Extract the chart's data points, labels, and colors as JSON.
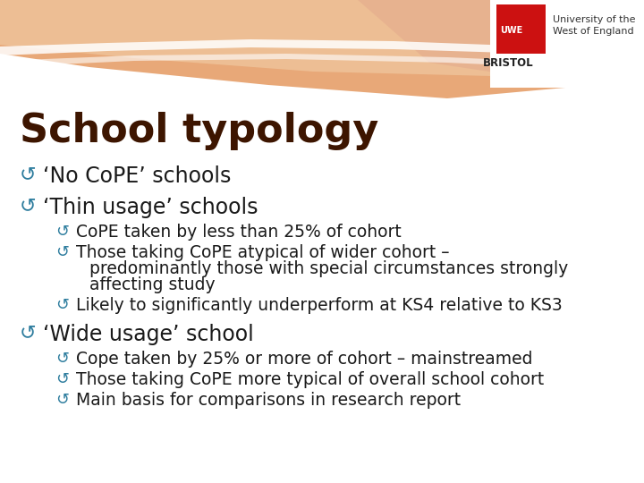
{
  "title": "School typology",
  "title_color": "#3d1500",
  "title_fontsize": 32,
  "bg_color": "#ffffff",
  "bullet_color": "#2e7d9e",
  "text_color": "#1a1a1a",
  "level1_fontsize": 17,
  "level2_fontsize": 13.5,
  "level1_items": [
    "‘No CoPE’ schools",
    "‘Thin usage’ schools"
  ],
  "level2_items_after_thin": [
    "CoPE taken by less than 25% of cohort",
    "Those taking CoPE atypical of wider cohort –\npredominantly those with special circumstances strongly\naffecting study",
    "Likely to significantly underperform at KS4 relative to KS3"
  ],
  "level1_wide": "‘Wide usage’ school",
  "level2_items_after_wide": [
    "Cope taken by 25% or more of cohort – mainstreamed",
    "Those taking CoPE more typical of overall school cohort",
    "Main basis for comparisons in research report"
  ],
  "bullet_l1": "↺",
  "bullet_l2": "↺",
  "uwe_logo_color": "#cc1111",
  "wave_colors": {
    "back_orange": "#e8a060",
    "mid_peach": "#e8c090",
    "front_tan": "#d4b090",
    "swoosh_white": "#ffffff"
  }
}
